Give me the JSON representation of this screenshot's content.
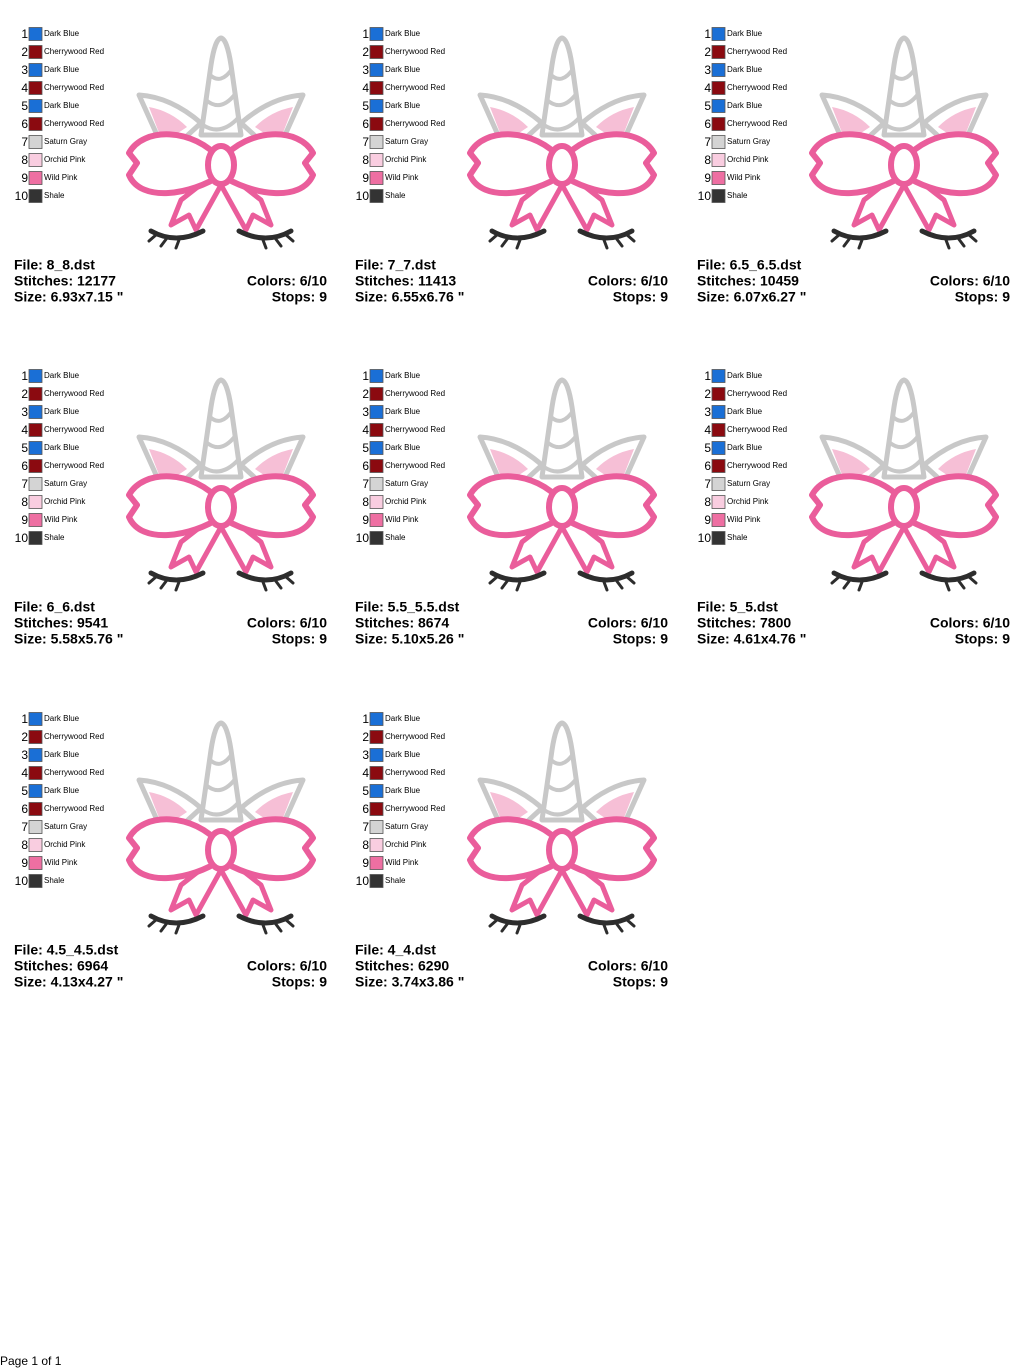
{
  "threads": [
    {
      "number": 1,
      "name": "Dark Blue",
      "color": "#1a6fd6"
    },
    {
      "number": 2,
      "name": "Cherrywood Red",
      "color": "#8b0a10"
    },
    {
      "number": 3,
      "name": "Dark Blue",
      "color": "#1a6fd6"
    },
    {
      "number": 4,
      "name": "Cherrywood Red",
      "color": "#8b0a10"
    },
    {
      "number": 5,
      "name": "Dark Blue",
      "color": "#1a6fd6"
    },
    {
      "number": 6,
      "name": "Cherrywood Red",
      "color": "#8b0a10"
    },
    {
      "number": 7,
      "name": "Saturn Gray",
      "color": "#d4d4d4"
    },
    {
      "number": 8,
      "name": "Orchid Pink",
      "color": "#f9cde0"
    },
    {
      "number": 9,
      "name": "Wild Pink",
      "color": "#ee6fa2"
    },
    {
      "number": 10,
      "name": "Shale",
      "color": "#333333"
    }
  ],
  "designs": [
    {
      "file": "File: 8_8.dst",
      "stitches": "Stitches: 12177",
      "size": "Size: 6.93x7.15 \"",
      "colors": "Colors: 6/10",
      "stops": "Stops: 9"
    },
    {
      "file": "File: 7_7.dst",
      "stitches": "Stitches: 11413",
      "size": "Size: 6.55x6.76 \"",
      "colors": "Colors: 6/10",
      "stops": "Stops: 9"
    },
    {
      "file": "File: 6.5_6.5.dst",
      "stitches": "Stitches: 10459",
      "size": "Size: 6.07x6.27 \"",
      "colors": "Colors: 6/10",
      "stops": "Stops: 9"
    },
    {
      "file": "File: 6_6.dst",
      "stitches": "Stitches: 9541",
      "size": "Size: 5.58x5.76 \"",
      "colors": "Colors: 6/10",
      "stops": "Stops: 9"
    },
    {
      "file": "File: 5.5_5.5.dst",
      "stitches": "Stitches: 8674",
      "size": "Size: 5.10x5.26 \"",
      "colors": "Colors: 6/10",
      "stops": "Stops: 9"
    },
    {
      "file": "File: 5_5.dst",
      "stitches": "Stitches: 7800",
      "size": "Size: 4.61x4.76 \"",
      "colors": "Colors: 6/10",
      "stops": "Stops: 9"
    },
    {
      "file": "File: 4.5_4.5.dst",
      "stitches": "Stitches: 6964",
      "size": "Size: 4.13x4.27 \"",
      "colors": "Colors: 6/10",
      "stops": "Stops: 9"
    },
    {
      "file": "File: 4_4.dst",
      "stitches": "Stitches: 6290",
      "size": "Size: 3.74x3.86 \"",
      "colors": "Colors: 6/10",
      "stops": "Stops: 9"
    }
  ],
  "footer": "Page 1 of 1"
}
